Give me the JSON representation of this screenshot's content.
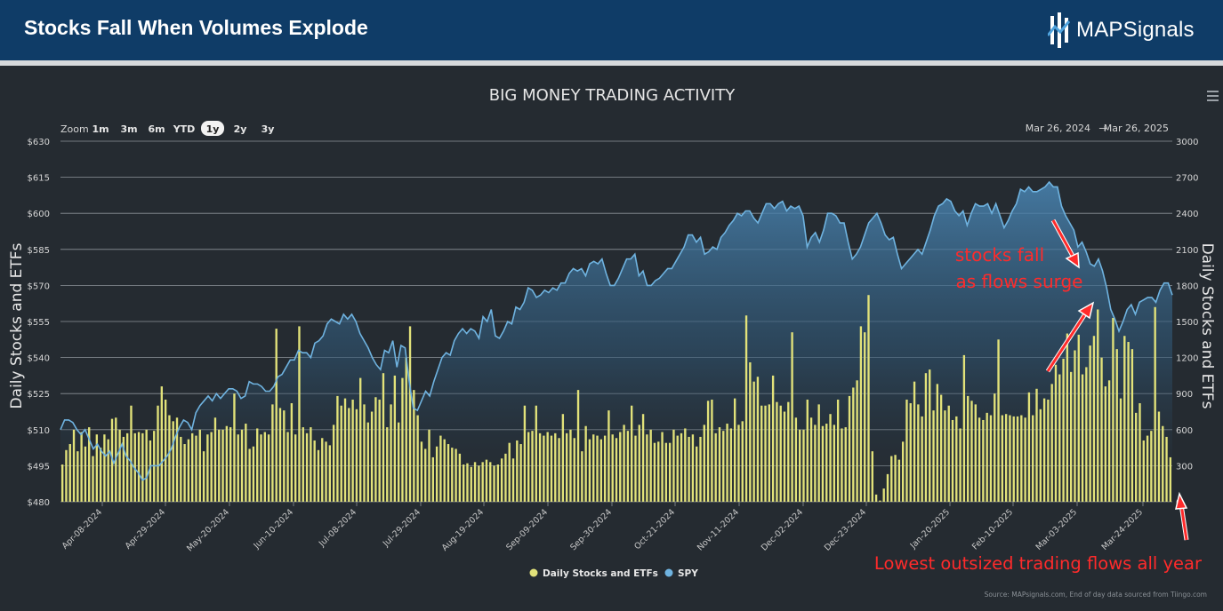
{
  "banner": {
    "title": "Stocks Fall When Volumes Explode",
    "logo_text_bold": "MAP",
    "logo_text_light": "Signals",
    "logo_icon": "mapsignals-logo-icon"
  },
  "toolbar": {
    "zoom_label": "Zoom",
    "zoom_options": [
      "1m",
      "3m",
      "6m",
      "YTD",
      "1y",
      "2y",
      "3y"
    ],
    "zoom_selected": "1y",
    "range_from": "Mar 26, 2024",
    "range_arrow": "→",
    "range_to": "Mar 26, 2025",
    "menu_icon": "hamburger-menu-icon"
  },
  "chart_data": {
    "type": "bar+line",
    "title": "BIG MONEY TRADING ACTIVITY",
    "ylabel_left": "Daily Stocks and ETFs",
    "ylabel_right": "Daily Stocks and ETFs",
    "left_axis": {
      "ticks": [
        "$630",
        "$615",
        "$600",
        "$585",
        "$570",
        "$555",
        "$540",
        "$525",
        "$510",
        "$495",
        "$480"
      ],
      "range": [
        480,
        630
      ]
    },
    "right_axis": {
      "ticks": [
        "3000",
        "2700",
        "2400",
        "2100",
        "1800",
        "1500",
        "1200",
        "900",
        "600",
        "300",
        "0"
      ],
      "range": [
        0,
        3000
      ]
    },
    "x_ticks": [
      "Apr-08-2024",
      "Apr-29-2024",
      "May-20-2024",
      "Jun-10-2024",
      "Jul-08-2024",
      "Jul-29-2024",
      "Aug-19-2024",
      "Sep-09-2024",
      "Sep-30-2024",
      "Oct-21-2024",
      "Nov-11-2024",
      "Dec-02-2024",
      "Dec-23-2024",
      "Jan-20-2025",
      "Feb-10-2025",
      "Mar-03-2025",
      "Mar-24-2025"
    ],
    "legend": {
      "placement": "bottom-center",
      "items": [
        {
          "name": "Daily Stocks and ETFs",
          "color": "#e2e27a"
        },
        {
          "name": "SPY",
          "color": "#6fb3e0"
        }
      ]
    },
    "series": [
      {
        "name": "Daily Stocks and ETFs",
        "kind": "bar",
        "axis": "right",
        "color": "#e2e27a",
        "values": [
          310,
          430,
          480,
          600,
          420,
          580,
          460,
          620,
          380,
          560,
          450,
          560,
          520,
          690,
          700,
          600,
          540,
          570,
          800,
          570,
          580,
          570,
          600,
          510,
          590,
          800,
          960,
          850,
          720,
          670,
          700,
          540,
          480,
          520,
          570,
          550,
          600,
          420,
          560,
          580,
          700,
          600,
          600,
          630,
          620,
          900,
          560,
          600,
          650,
          440,
          460,
          610,
          560,
          580,
          560,
          810,
          1440,
          780,
          760,
          580,
          820,
          560,
          1460,
          620,
          570,
          620,
          510,
          430,
          530,
          500,
          470,
          640,
          880,
          800,
          860,
          780,
          850,
          770,
          1030,
          810,
          660,
          750,
          870,
          850,
          1070,
          620,
          810,
          1050,
          660,
          1030,
          1200,
          1460,
          930,
          720,
          500,
          440,
          600,
          370,
          460,
          550,
          520,
          480,
          450,
          440,
          400,
          310,
          320,
          290,
          330,
          300,
          330,
          350,
          330,
          300,
          310,
          360,
          400,
          490,
          360,
          510,
          480,
          800,
          580,
          590,
          800,
          570,
          550,
          580,
          550,
          570,
          530,
          730,
          570,
          600,
          530,
          930,
          420,
          630,
          520,
          560,
          550,
          520,
          550,
          760,
          560,
          530,
          580,
          640,
          590,
          800,
          550,
          640,
          730,
          560,
          600,
          490,
          500,
          580,
          490,
          490,
          600,
          550,
          570,
          610,
          540,
          560,
          460,
          540,
          640,
          840,
          850,
          570,
          620,
          590,
          650,
          610,
          860,
          640,
          670,
          1550,
          1160,
          1000,
          1040,
          800,
          800,
          810,
          1050,
          830,
          800,
          750,
          830,
          1410,
          700,
          600,
          600,
          850,
          700,
          640,
          810,
          630,
          650,
          730,
          640,
          850,
          610,
          620,
          880,
          950,
          1010,
          1460,
          1410,
          1720,
          420,
          60,
          10,
          110,
          230,
          380,
          390,
          350,
          500,
          850,
          820,
          1000,
          810,
          710,
          1070,
          1100,
          760,
          980,
          890,
          760,
          800,
          680,
          710,
          610,
          1220,
          880,
          840,
          810,
          700,
          680,
          740,
          720,
          900,
          1350,
          720,
          730,
          720,
          710,
          710,
          720,
          700,
          910,
          720,
          940,
          770,
          860,
          850,
          980,
          1140,
          1060,
          1190,
          1400,
          1080,
          1260,
          1390,
          1060,
          1120,
          1300,
          1380,
          1600,
          1200,
          960,
          1010,
          1530,
          1270,
          860,
          1380,
          1330,
          1270,
          740,
          820,
          510,
          550,
          590,
          1620,
          750,
          630,
          540,
          370
        ]
      },
      {
        "name": "SPY",
        "kind": "line",
        "axis": "left",
        "color": "#6fb3e0",
        "values": [
          510,
          514,
          514,
          513,
          510,
          508,
          510,
          506,
          502,
          504,
          501,
          499,
          501,
          496,
          500,
          504,
          499,
          497,
          494,
          492,
          489,
          490,
          495,
          495,
          495,
          497,
          499,
          502,
          507,
          511,
          514,
          513,
          510,
          517,
          520,
          522,
          524,
          522,
          525,
          523,
          525,
          527,
          527,
          526,
          523,
          524,
          530,
          529,
          529,
          528,
          526,
          526,
          528,
          532,
          533,
          536,
          539,
          539,
          543,
          542,
          542,
          540,
          546,
          547,
          549,
          554,
          556,
          555,
          554,
          558,
          556,
          558,
          555,
          550,
          547,
          544,
          540,
          537,
          535,
          543,
          542,
          547,
          536,
          545,
          544,
          530,
          519,
          518,
          522,
          526,
          524,
          530,
          535,
          540,
          542,
          541,
          547,
          550,
          552,
          550,
          552,
          551,
          548,
          557,
          555,
          560,
          549,
          548,
          551,
          555,
          554,
          561,
          560,
          563,
          569,
          568,
          565,
          566,
          568,
          567,
          569,
          568,
          571,
          571,
          575,
          577,
          576,
          577,
          574,
          579,
          580,
          579,
          581,
          575,
          570,
          570,
          573,
          577,
          581,
          581,
          583,
          574,
          576,
          570,
          570,
          572,
          573,
          575,
          577,
          577,
          580,
          583,
          586,
          591,
          591,
          588,
          590,
          583,
          584,
          586,
          585,
          590,
          592,
          595,
          597,
          600,
          599,
          601,
          601,
          598,
          596,
          600,
          604,
          604,
          602,
          604,
          605,
          601,
          603,
          602,
          603,
          599,
          586,
          590,
          592,
          588,
          593,
          600,
          600,
          599,
          596,
          596,
          588,
          581,
          583,
          586,
          591,
          596,
          598,
          600,
          596,
          591,
          589,
          590,
          583,
          577,
          579,
          581,
          583,
          585,
          583,
          588,
          593,
          599,
          603,
          604,
          606,
          605,
          601,
          599,
          601,
          595,
          600,
          604,
          603,
          603,
          604,
          600,
          604,
          599,
          594,
          597,
          601,
          604,
          610,
          609,
          611,
          609,
          609,
          610,
          611,
          613,
          611,
          611,
          603,
          599,
          596,
          593,
          586,
          588,
          584,
          579,
          578,
          581,
          576,
          569,
          560,
          556,
          551,
          555,
          560,
          562,
          558,
          563,
          564,
          565,
          565,
          563,
          568,
          571,
          571,
          566
        ]
      }
    ],
    "annotations": [
      {
        "text_line1": "stocks fall",
        "text_line2": "as flows surge",
        "color": "#ff2b2b"
      },
      {
        "text": "Lowest outsized trading flows all year",
        "color": "#ff2b2b"
      }
    ],
    "source_note": "Source: MAPsignals.com, End of day data sourced from Tiingo.com"
  }
}
